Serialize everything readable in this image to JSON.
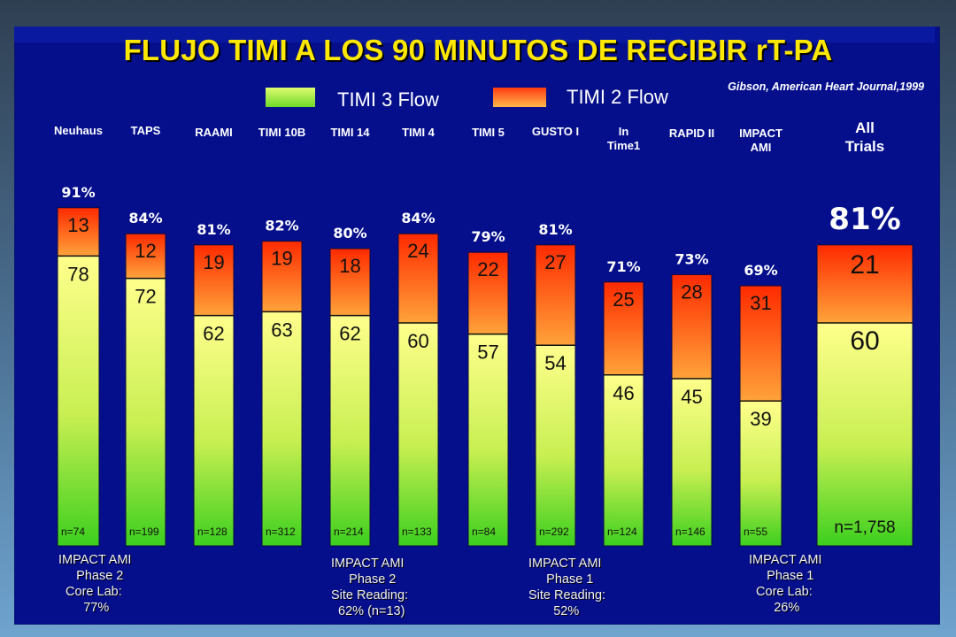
{
  "title": "FLUJO TIMI A LOS 90 MINUTOS DE RECIBIR rT-PA",
  "source": "Gibson, American Heart Journal,1999",
  "legend": {
    "timi3": {
      "label": "TIMI 3 Flow",
      "color": "#7ee02a"
    },
    "timi2": {
      "label": "TIMI 2 Flow",
      "color": "#ff4a1a"
    }
  },
  "chart_data": {
    "type": "bar",
    "stacked": true,
    "categories": [
      "Neuhaus",
      "TAPS",
      "RAAMI",
      "TIMI 10B",
      "TIMI 14",
      "TIMI 4",
      "TIMI 5",
      "GUSTO I",
      "In Time1",
      "RAPID II",
      "IMPACT AMI",
      "All Trials"
    ],
    "series": [
      {
        "name": "TIMI 3 Flow",
        "values": [
          78,
          72,
          62,
          63,
          62,
          60,
          57,
          54,
          46,
          45,
          39,
          60
        ]
      },
      {
        "name": "TIMI 2 Flow",
        "values": [
          13,
          12,
          19,
          19,
          18,
          24,
          22,
          27,
          25,
          28,
          31,
          21
        ]
      }
    ],
    "totals": [
      "91%",
      "84%",
      "81%",
      "82%",
      "80%",
      "84%",
      "79%",
      "81%",
      "71%",
      "73%",
      "69%",
      "81%"
    ],
    "n": [
      "n=74",
      "n=199",
      "n=128",
      "n=312",
      "n=214",
      "n=133",
      "n=84",
      "n=292",
      "n=124",
      "n=146",
      "n=55",
      "n=1,758"
    ],
    "ylim": [
      0,
      100
    ]
  },
  "notes": [
    {
      "text": "IMPACT AMI\n     Phase 2\n  Core Lab:\n       77%"
    },
    {
      "text": "IMPACT AMI\n     Phase 2\nSite Reading:\n  62% (n=13)"
    },
    {
      "text": "IMPACT AMI\n     Phase 1\nSite Reading:\n       52%"
    },
    {
      "text": "IMPACT AMI\n     Phase 1\n  Core Lab:\n       26%"
    }
  ]
}
